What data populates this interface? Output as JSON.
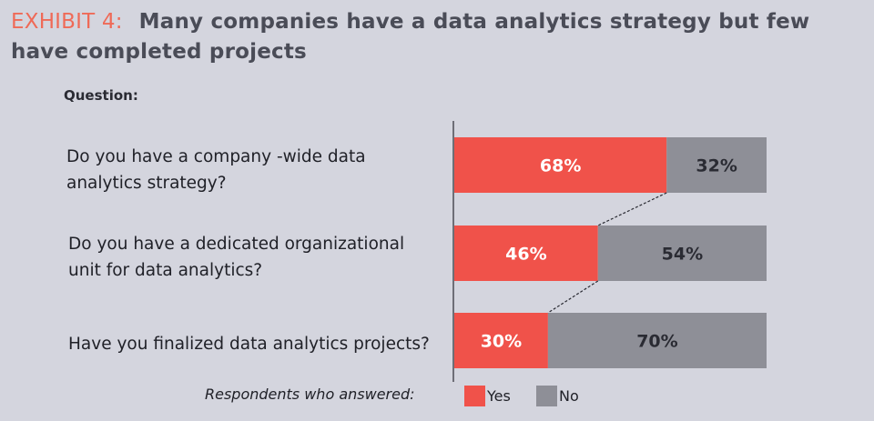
{
  "title": {
    "exhibit": "EXHIBIT 4:",
    "text": "Many companies have a data analytics strategy but few have completed projects"
  },
  "question_label": "Question:",
  "questions": [
    "Do you have a company -wide data analytics strategy?",
    "Do you have a dedicated organizational unit for data analytics?",
    "Have you finalized data analytics projects?"
  ],
  "legend": {
    "caption": "Respondents who answered:",
    "yes": "Yes",
    "no": "No"
  },
  "colors": {
    "yes": "#f0524a",
    "no": "#8e8f97",
    "background": "#d4d5de",
    "accent": "#ef6a57"
  },
  "chart_data": {
    "type": "bar",
    "orientation": "horizontal",
    "stacked": true,
    "categories": [
      "Do you have a company -wide data analytics strategy?",
      "Do you have a dedicated organizational unit for data analytics?",
      "Have you finalized data analytics projects?"
    ],
    "series": [
      {
        "name": "Yes",
        "values": [
          68,
          46,
          30
        ],
        "labels": [
          "68%",
          "46%",
          "30%"
        ]
      },
      {
        "name": "No",
        "values": [
          32,
          54,
          70
        ],
        "labels": [
          "32%",
          "54%",
          "70%"
        ]
      }
    ],
    "xlim": [
      0,
      100
    ],
    "grid": false,
    "legend_position": "bottom"
  }
}
